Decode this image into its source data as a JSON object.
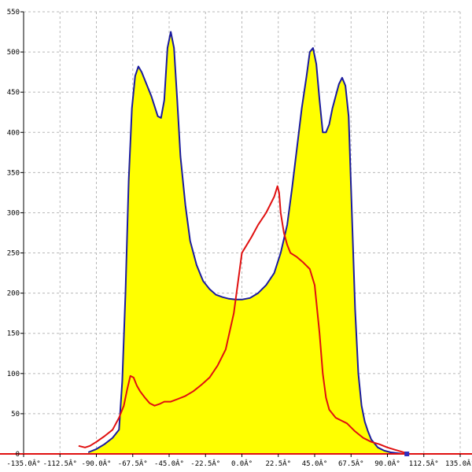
{
  "chart_data": {
    "type": "area",
    "title": "",
    "xlabel": "",
    "ylabel": "",
    "xlim": [
      -135,
      135
    ],
    "ylim": [
      0,
      550
    ],
    "grid": true,
    "x_ticks": [
      -135,
      -112.5,
      -90,
      -67.5,
      -45,
      -22.5,
      0,
      22.5,
      45,
      67.5,
      90,
      112.5,
      135
    ],
    "x_tick_labels": [
      "-135.0Â°",
      "-112.5Â°",
      "-90.0Â°",
      "-67.5Â°",
      "-45.0Â°",
      "-22.5Â°",
      "0.0Â°",
      "22.5Â°",
      "45.0Â°",
      "67.5Â°",
      "90.0Â°",
      "112.5Â°",
      "135.0Â°"
    ],
    "y_ticks": [
      50,
      100,
      150,
      200,
      250,
      300,
      350,
      400,
      450,
      500,
      550
    ],
    "y_tick_labels": [
      "50",
      "100",
      "150",
      "200",
      "250",
      "300",
      "350",
      "400",
      "450",
      "500",
      "550"
    ],
    "colors": {
      "fill": "#ffff00",
      "series1": "#1a1aa0",
      "series2": "#e01010",
      "grid": "#b8b8b8",
      "axis": "#000000"
    },
    "series": [
      {
        "style": "filled",
        "color": "#1a1aa0",
        "x": [
          -95,
          -90,
          -85,
          -80,
          -76,
          -74,
          -72,
          -70,
          -68,
          -66,
          -64,
          -62,
          -60,
          -56,
          -52,
          -50,
          -48,
          -46,
          -44,
          -42,
          -40,
          -38,
          -35,
          -32,
          -28,
          -24,
          -20,
          -16,
          -12,
          -8,
          -4,
          0,
          5,
          10,
          15,
          20,
          24,
          28,
          31,
          34,
          37,
          40,
          42,
          44,
          46,
          48,
          50,
          52,
          54,
          56,
          58,
          60,
          62,
          64,
          66,
          68,
          70,
          72,
          74,
          76,
          78,
          80,
          84,
          88,
          92,
          96,
          100,
          103
        ],
        "y": [
          2,
          6,
          12,
          20,
          30,
          90,
          200,
          340,
          430,
          470,
          482,
          475,
          465,
          445,
          420,
          418,
          440,
          505,
          525,
          505,
          440,
          370,
          310,
          265,
          235,
          215,
          205,
          198,
          195,
          193,
          192,
          192,
          194,
          200,
          210,
          225,
          250,
          285,
          330,
          380,
          430,
          470,
          500,
          505,
          485,
          440,
          400,
          400,
          410,
          430,
          445,
          460,
          468,
          458,
          420,
          300,
          180,
          100,
          60,
          40,
          28,
          18,
          8,
          4,
          2,
          1,
          0,
          0
        ]
      },
      {
        "style": "line",
        "color": "#e01010",
        "x": [
          -101,
          -97,
          -94,
          -90,
          -85,
          -80,
          -76,
          -73,
          -71,
          -69,
          -67,
          -65,
          -63,
          -60,
          -57,
          -54,
          -51,
          -48,
          -44,
          -40,
          -35,
          -30,
          -25,
          -20,
          -15,
          -10,
          -5,
          -2,
          0,
          3,
          6,
          10,
          15,
          20,
          22,
          23,
          24,
          26,
          28,
          30,
          34,
          38,
          42,
          45,
          48,
          50,
          52,
          54,
          56,
          58,
          61,
          65,
          70,
          75,
          80,
          85,
          90,
          95,
          100,
          103
        ],
        "y": [
          10,
          8,
          10,
          15,
          22,
          30,
          45,
          60,
          80,
          97,
          95,
          85,
          78,
          70,
          63,
          60,
          62,
          65,
          65,
          68,
          72,
          78,
          86,
          95,
          110,
          130,
          175,
          220,
          250,
          260,
          270,
          285,
          300,
          320,
          333,
          325,
          300,
          275,
          260,
          250,
          245,
          238,
          230,
          210,
          150,
          100,
          70,
          55,
          50,
          45,
          42,
          38,
          28,
          20,
          15,
          12,
          8,
          5,
          2,
          1
        ]
      }
    ]
  }
}
